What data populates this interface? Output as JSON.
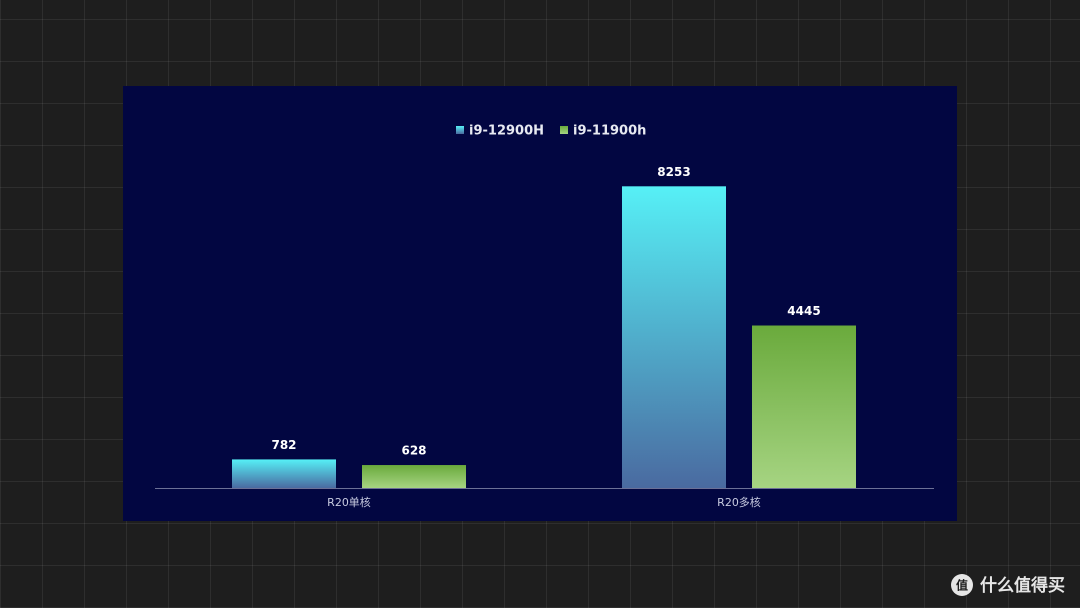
{
  "chart_data": {
    "type": "bar",
    "categories": [
      "R20单核",
      "R20多核"
    ],
    "series": [
      {
        "name": "i9-12900H",
        "gradient": [
          "#56f0f6",
          "#4a6aa0"
        ],
        "values": [
          782,
          8253
        ]
      },
      {
        "name": "i9-11900h",
        "gradient": [
          "#6aaa3c",
          "#a6d482"
        ],
        "values": [
          628,
          4445
        ]
      }
    ],
    "ylim": [
      0,
      9000
    ]
  },
  "watermark": "什么值得买"
}
